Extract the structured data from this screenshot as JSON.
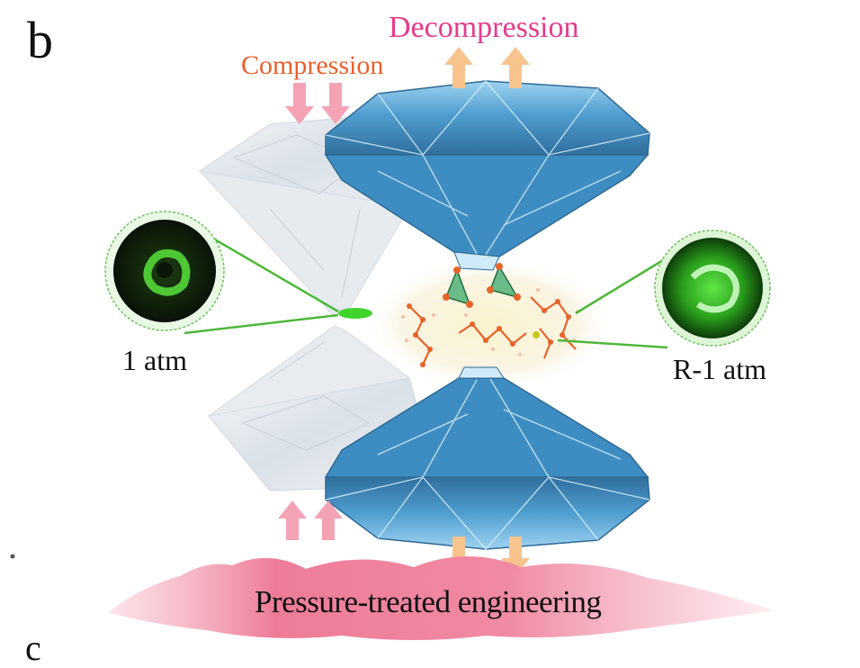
{
  "figure": {
    "panel_letter": "b",
    "next_panel_letter": "c",
    "compression_label": "Compression",
    "decompression_label": "Decompression",
    "left_state_label": "1 atm",
    "right_state_label": "R-1 atm",
    "process_label": "Pressure-treated engineering"
  },
  "colors": {
    "compression_text": "#e8602c",
    "decompression_text": "#e43c8c",
    "compression_arrow": "#f4a3b4",
    "decompression_arrow": "#f7c48e",
    "diamond_blue": "#5ea9d6",
    "glow_green": "#3fd32c",
    "molecule_orange": "#e8632a",
    "tetrahedron_green": "#3aa86b"
  }
}
